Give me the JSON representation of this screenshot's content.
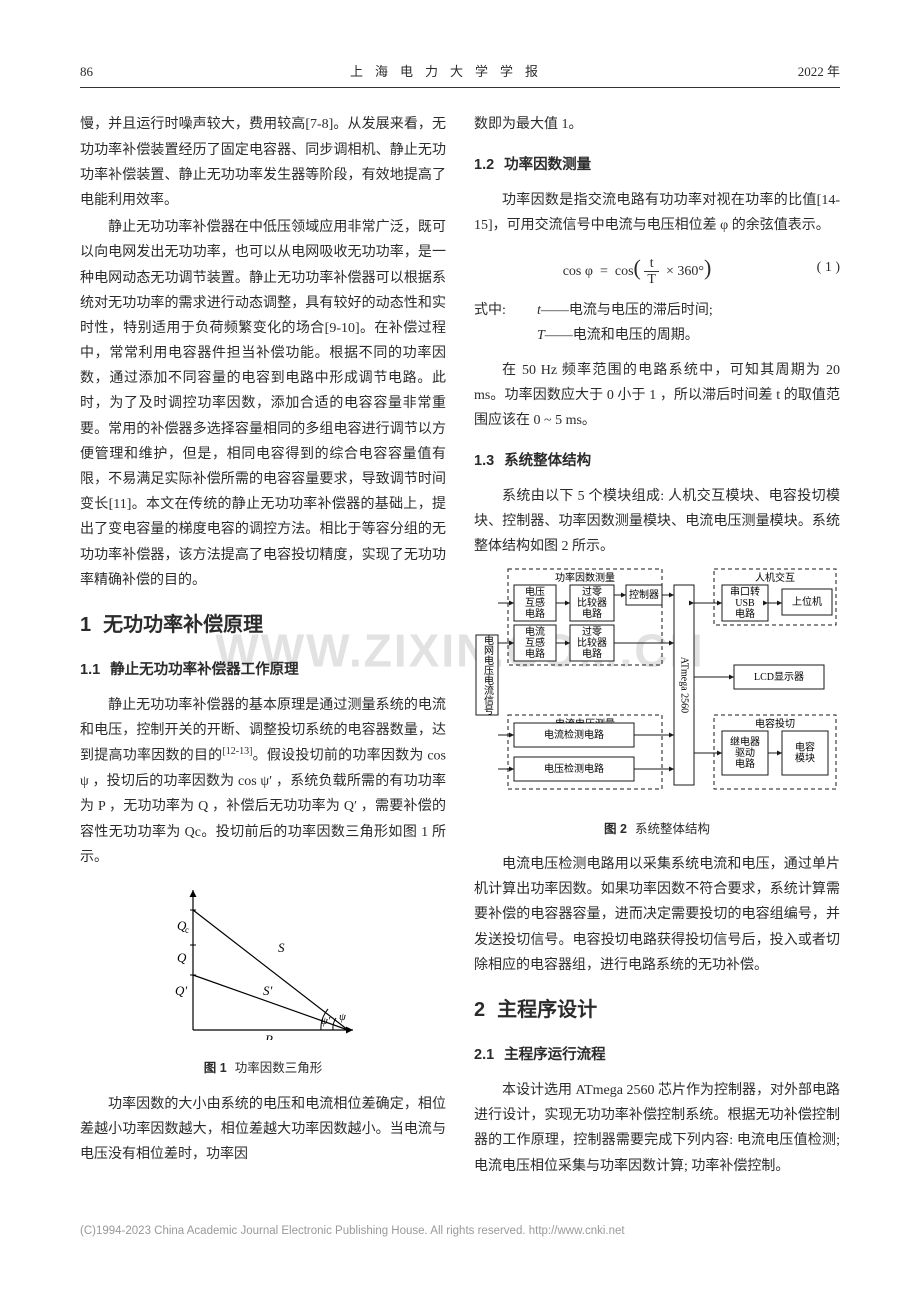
{
  "header": {
    "page": "86",
    "journal": "上海电力大学学报",
    "year": "2022 年"
  },
  "left": {
    "p1": "慢，并且运行时噪声较大，费用较高[7-8]。从发展来看，无功功率补偿装置经历了固定电容器、同步调相机、静止无功功率补偿装置、静止无功功率发生器等阶段，有效地提高了电能利用效率。",
    "p2": "静止无功功率补偿器在中低压领域应用非常广泛，既可以向电网发出无功功率，也可以从电网吸收无功功率，是一种电网动态无功调节装置。静止无功功率补偿器可以根据系统对无功功率的需求进行动态调整，具有较好的动态性和实时性，特别适用于负荷频繁变化的场合[9-10]。在补偿过程中，常常利用电容器件担当补偿功能。根据不同的功率因数，通过添加不同容量的电容到电路中形成调节电路。此时，为了及时调控功率因数，添加合适的电容容量非常重要。常用的补偿器多选择容量相同的多组电容进行调节以方便管理和维护，但是，相同电容得到的综合电容容量值有限，不易满足实际补偿所需的电容容量要求，导致调节时间变长[11]。本文在传统的静止无功功率补偿器的基础上，提出了变电容量的梯度电容的调控方法。相比于等容分组的无功功率补偿器，该方法提高了电容投切精度，实现了无功功率精确补偿的目的。",
    "h1": {
      "num": "1",
      "title": "无功功率补偿原理"
    },
    "h2_11": {
      "num": "1.1",
      "title": "静止无功功率补偿器工作原理"
    },
    "p3a": "静止无功功率补偿器的基本原理是通过测量系统的电流和电压，控制开关的开断、调整投切系统的电容器数量，达到提高功率因数的目的",
    "p3b": "。假设投切前的功率因数为 cos ψ ，投切后的功率因数为 cos ψ′ ，系统负载所需的有功功率为 P ，无功功率为 Q ，补偿后无功功率为 Q′ ，需要补偿的容性无功功率为 Qc。投切前后的功率因数三角形如图 1 所示。",
    "p3_ref": "[12-13]",
    "fig1_caption": {
      "label": "图 1",
      "text": "功率因数三角形"
    },
    "p4": "功率因数的大小由系统的电压和电流相位差确定，相位差越小功率因数越大，相位差越大功率因数越小。当电流与电压没有相位差时，功率因",
    "fig1": {
      "labels": {
        "Qc": "Qc",
        "Q": "Q",
        "Qp": "Q′",
        "S": "S",
        "Sp": "S′",
        "P": "P",
        "psi": "ψ",
        "psip": "ψ′"
      },
      "stroke": "#000000",
      "fill": "#ffffff"
    }
  },
  "right": {
    "p1": "数即为最大值 1。",
    "h2_12": {
      "num": "1.2",
      "title": "功率因数测量"
    },
    "p2": "功率因数是指交流电路有功功率对视在功率的比值[14-15]，可用交流信号中电流与电压相位差 φ 的余弦值表示。",
    "eq1": {
      "lhs": "cos φ",
      "rhs_a": "cos",
      "rhs_frac_n": "t",
      "rhs_frac_d": "T",
      "rhs_b": "× 360°",
      "num": "( 1 )"
    },
    "eqdef_prefix": "式中:",
    "eqdef": [
      {
        "sym": "t",
        "dash": "——",
        "text": "电流与电压的滞后时间;"
      },
      {
        "sym": "T",
        "dash": "——",
        "text": "电流和电压的周期。"
      }
    ],
    "p3": "在 50 Hz 频率范围的电路系统中，可知其周期为 20 ms。功率因数应大于 0 小于 1 ，所以滞后时间差 t 的取值范围应该在 0 ~ 5 ms。",
    "h2_13": {
      "num": "1.3",
      "title": "系统整体结构"
    },
    "p4": "系统由以下 5 个模块组成: 人机交互模块、电容投切模块、控制器、功率因数测量模块、电流电压测量模块。系统整体结构如图 2 所示。",
    "fig2_caption": {
      "label": "图 2",
      "text": "系统整体结构"
    },
    "p5": "电流电压检测电路用以采集系统电流和电压，通过单片机计算出功率因数。如果功率因数不符合要求，系统计算需要补偿的电容器容量，进而决定需要投切的电容组编号，并发送投切信号。电容投切电路获得投切信号后，投入或者切除相应的电容器组，进行电路系统的无功补偿。",
    "h1": {
      "num": "2",
      "title": "主程序设计"
    },
    "h2_21": {
      "num": "2.1",
      "title": "主程序运行流程"
    },
    "p6": "本设计选用 ATmega 2560 芯片作为控制器，对外部电路进行设计，实现无功功率补偿控制系统。根据无功补偿控制器的工作原理，控制器需要完成下列内容: 电流电压值检测; 电流电压相位采集与功率因数计算; 功率补偿控制。",
    "fig2": {
      "boxes": {
        "source": "电网\n电压\n电流\n信号",
        "grp_pf": "功率因数测量",
        "grp_hmi": "人机交互",
        "grp_meas": "电流电压测量",
        "grp_cap": "电容投切",
        "vtrans": "电压\n互感\n电路",
        "vzero": "过零\n比较器\n电路",
        "itrans": "电流\n互感\n电路",
        "izero": "过零\n比较器\n电路",
        "ctrl": "控制器",
        "mcu": "ATmega 2560",
        "usb": "串口转\nUSB\n电路",
        "host": "上位机",
        "lcd": "LCD显示器",
        "idet": "电流检测电路",
        "vdet": "电压检测电路",
        "relay": "继电器\n驱动\n电路",
        "cap": "电容\n模块"
      },
      "stroke": "#1a1a1a",
      "dash": "4,3",
      "bg": "#ffffff",
      "font_size": 10
    }
  },
  "watermark": "WWW.ZIXIN.COM.CN",
  "footer": "(C)1994-2023 China Academic Journal Electronic Publishing House. All rights reserved.    http://www.cnki.net"
}
